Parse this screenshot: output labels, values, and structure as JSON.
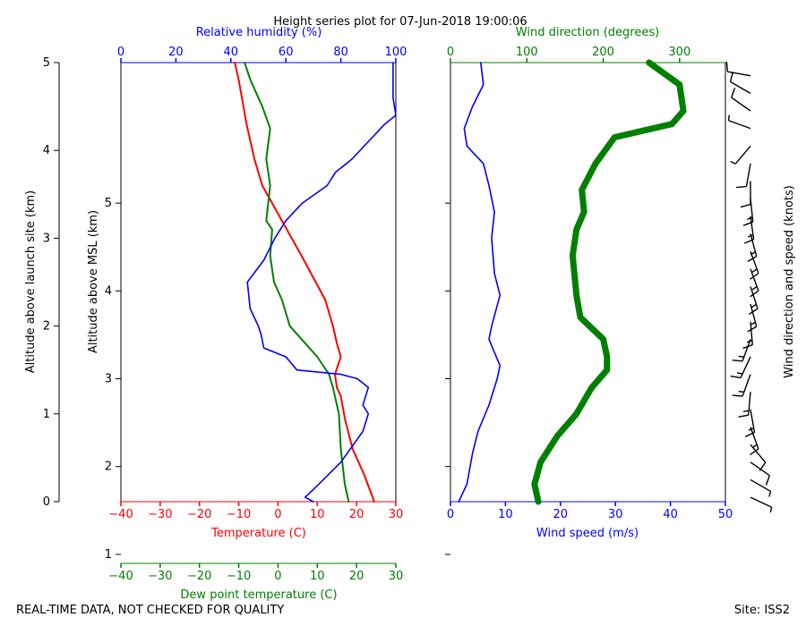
{
  "title": "Height series plot for 07-Jun-2018 19:00:06",
  "footer": {
    "left": "REAL-TIME DATA, NOT CHECKED FOR QUALITY",
    "right": "Site: ISS2"
  },
  "colors": {
    "temperature": "#ff0000",
    "dewpoint": "#008000",
    "humidity": "#0000ff",
    "wind_speed": "#0000ff",
    "wind_direction": "#008000",
    "barbs": "#000000"
  },
  "chart_data": [
    {
      "type": "line",
      "panel": "thermodynamics",
      "ylabel_outer": "Altitude above launch site (km)",
      "ylabel_inner": "Altitude above MSL (km)",
      "y_outer_ticks": [
        "0",
        "1",
        "2",
        "3",
        "4",
        "5"
      ],
      "y_inner_ticks": [
        "1",
        "2",
        "3",
        "4",
        "5"
      ],
      "y_outer_range_km": [
        0,
        5
      ],
      "msl_offset_km": 1.6,
      "x_temperature": {
        "label": "Temperature (C)",
        "range": [
          -40,
          30
        ],
        "ticks": [
          "−40",
          "−30",
          "−20",
          "−10",
          "0",
          "10",
          "20",
          "30"
        ]
      },
      "x_dewpoint": {
        "label": "Dew point temperature (C)",
        "range": [
          -40,
          30
        ],
        "ticks": [
          "−40",
          "−30",
          "−20",
          "−10",
          "0",
          "10",
          "20",
          "30"
        ]
      },
      "x_humidity": {
        "label": "Relative humidity (%)",
        "range": [
          0,
          100
        ],
        "ticks": [
          "0",
          "20",
          "40",
          "60",
          "80",
          "100"
        ]
      },
      "series": [
        {
          "name": "Temperature",
          "unit": "C",
          "points": [
            [
              24.5,
              0.0
            ],
            [
              22,
              0.3
            ],
            [
              19,
              0.6
            ],
            [
              17,
              0.95
            ],
            [
              16,
              1.2
            ],
            [
              15,
              1.3
            ],
            [
              14.5,
              1.45
            ],
            [
              16,
              1.65
            ],
            [
              15,
              1.8
            ],
            [
              14,
              2.0
            ],
            [
              12,
              2.3
            ],
            [
              6,
              2.8
            ],
            [
              1,
              3.2
            ],
            [
              -4,
              3.6
            ],
            [
              -6,
              3.9
            ],
            [
              -8,
              4.3
            ],
            [
              -10,
              4.8
            ],
            [
              -11,
              5.0
            ]
          ]
        },
        {
          "name": "Dew point",
          "unit": "C",
          "points": [
            [
              18,
              0.0
            ],
            [
              17,
              0.2
            ],
            [
              16.5,
              0.4
            ],
            [
              16,
              0.6
            ],
            [
              15.5,
              1.0
            ],
            [
              14,
              1.3
            ],
            [
              13,
              1.45
            ],
            [
              10,
              1.65
            ],
            [
              7,
              1.8
            ],
            [
              3,
              2.0
            ],
            [
              1,
              2.3
            ],
            [
              -1,
              2.5
            ],
            [
              -2,
              2.8
            ],
            [
              -1.5,
              3.1
            ],
            [
              -3,
              3.2
            ],
            [
              -2,
              3.6
            ],
            [
              -3,
              3.9
            ],
            [
              -2,
              4.25
            ],
            [
              -4,
              4.5
            ],
            [
              -7,
              4.8
            ],
            [
              -8.5,
              5.0
            ]
          ]
        },
        {
          "name": "Relative humidity",
          "unit": "%",
          "points": [
            [
              70,
              0.0
            ],
            [
              67,
              0.05
            ],
            [
              72,
              0.2
            ],
            [
              80,
              0.45
            ],
            [
              88,
              0.8
            ],
            [
              90,
              1.0
            ],
            [
              88,
              1.1
            ],
            [
              90,
              1.3
            ],
            [
              86,
              1.4
            ],
            [
              80,
              1.45
            ],
            [
              64,
              1.5
            ],
            [
              60,
              1.65
            ],
            [
              52,
              1.75
            ],
            [
              51,
              1.9
            ],
            [
              50,
              2.0
            ],
            [
              47,
              2.2
            ],
            [
              46,
              2.5
            ],
            [
              52,
              2.75
            ],
            [
              56,
              3.0
            ],
            [
              60,
              3.2
            ],
            [
              66,
              3.4
            ],
            [
              75,
              3.6
            ],
            [
              78,
              3.75
            ],
            [
              84,
              3.9
            ],
            [
              96,
              4.3
            ],
            [
              100,
              4.4
            ],
            [
              99,
              4.6
            ],
            [
              99,
              5.0
            ]
          ]
        }
      ]
    },
    {
      "type": "line",
      "panel": "wind",
      "x_speed": {
        "label": "Wind speed (m/s)",
        "range": [
          0,
          50
        ],
        "ticks": [
          "0",
          "10",
          "20",
          "30",
          "40",
          "50"
        ]
      },
      "x_direction": {
        "label": "Wind direction (degrees)",
        "range": [
          0,
          360
        ],
        "ticks": [
          "0",
          "100",
          "200",
          "300"
        ]
      },
      "barb_label": "Wind direction and speed (knots)",
      "series": [
        {
          "name": "Wind speed",
          "unit": "m/s",
          "points": [
            [
              1.5,
              0.0
            ],
            [
              3,
              0.2
            ],
            [
              4,
              0.55
            ],
            [
              5,
              0.8
            ],
            [
              7,
              1.1
            ],
            [
              8.5,
              1.4
            ],
            [
              9,
              1.55
            ],
            [
              8,
              1.7
            ],
            [
              7,
              1.85
            ],
            [
              7.5,
              2.0
            ],
            [
              9,
              2.35
            ],
            [
              8,
              2.6
            ],
            [
              7.5,
              3.0
            ],
            [
              8,
              3.3
            ],
            [
              7,
              3.6
            ],
            [
              6,
              3.85
            ],
            [
              3,
              4.05
            ],
            [
              2.5,
              4.25
            ],
            [
              4,
              4.5
            ],
            [
              6,
              4.75
            ],
            [
              5.5,
              5.0
            ]
          ]
        },
        {
          "name": "Wind direction",
          "unit": "degrees",
          "points": [
            [
              115,
              0.0
            ],
            [
              110,
              0.2
            ],
            [
              118,
              0.45
            ],
            [
              140,
              0.75
            ],
            [
              165,
              1.0
            ],
            [
              185,
              1.3
            ],
            [
              205,
              1.5
            ],
            [
              205,
              1.65
            ],
            [
              200,
              1.85
            ],
            [
              170,
              2.1
            ],
            [
              165,
              2.35
            ],
            [
              160,
              2.8
            ],
            [
              165,
              3.1
            ],
            [
              175,
              3.3
            ],
            [
              172,
              3.55
            ],
            [
              190,
              3.85
            ],
            [
              215,
              4.15
            ],
            [
              290,
              4.3
            ],
            [
              305,
              4.45
            ],
            [
              300,
              4.75
            ],
            [
              260,
              5.0
            ]
          ]
        }
      ],
      "barbs": [
        {
          "alt": 0.05,
          "dir": 115,
          "spd": 4
        },
        {
          "alt": 0.25,
          "dir": 120,
          "spd": 6
        },
        {
          "alt": 0.45,
          "dir": 125,
          "spd": 8
        },
        {
          "alt": 0.65,
          "dir": 140,
          "spd": 10
        },
        {
          "alt": 0.85,
          "dir": 160,
          "spd": 13
        },
        {
          "alt": 1.05,
          "dir": 170,
          "spd": 16
        },
        {
          "alt": 1.25,
          "dir": 185,
          "spd": 17
        },
        {
          "alt": 1.45,
          "dir": 200,
          "spd": 17
        },
        {
          "alt": 1.65,
          "dir": 205,
          "spd": 15
        },
        {
          "alt": 1.85,
          "dir": 200,
          "spd": 14
        },
        {
          "alt": 2.05,
          "dir": 175,
          "spd": 14
        },
        {
          "alt": 2.25,
          "dir": 165,
          "spd": 17
        },
        {
          "alt": 2.45,
          "dir": 162,
          "spd": 16
        },
        {
          "alt": 2.65,
          "dir": 160,
          "spd": 15
        },
        {
          "alt": 2.85,
          "dir": 160,
          "spd": 15
        },
        {
          "alt": 3.05,
          "dir": 165,
          "spd": 15
        },
        {
          "alt": 3.25,
          "dir": 172,
          "spd": 15
        },
        {
          "alt": 3.45,
          "dir": 174,
          "spd": 14
        },
        {
          "alt": 3.65,
          "dir": 180,
          "spd": 12
        },
        {
          "alt": 3.85,
          "dir": 190,
          "spd": 9
        },
        {
          "alt": 4.05,
          "dir": 220,
          "spd": 5
        },
        {
          "alt": 4.25,
          "dir": 290,
          "spd": 5
        },
        {
          "alt": 4.45,
          "dir": 305,
          "spd": 8
        },
        {
          "alt": 4.65,
          "dir": 300,
          "spd": 11
        },
        {
          "alt": 4.85,
          "dir": 280,
          "spd": 11
        }
      ]
    }
  ]
}
